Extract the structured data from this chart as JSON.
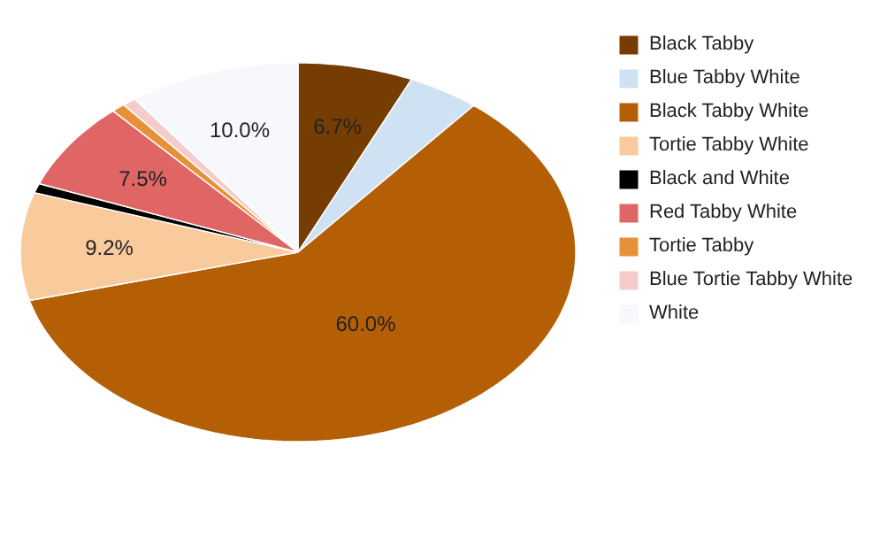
{
  "chart_data": {
    "type": "pie",
    "categories": [
      "Black Tabby",
      "Blue Tabby White",
      "Black Tabby White",
      "Tortie Tabby White",
      "Black and White",
      "Red Tabby White",
      "Tortie Tabby",
      "Blue Tortie Tabby White",
      "White"
    ],
    "values": [
      6.7,
      4.2,
      60.0,
      9.2,
      0.8,
      7.5,
      0.8,
      0.8,
      10.0
    ],
    "colors": [
      "#763d03",
      "#cfe2f3",
      "#b45f06",
      "#f9cb9c",
      "#000000",
      "#e06666",
      "#e69138",
      "#f4cccc",
      "#f6f8fb"
    ],
    "value_labels": [
      "6.7%",
      null,
      "60.0%",
      "9.2%",
      null,
      "7.5%",
      null,
      null,
      "10.0%"
    ],
    "legend": "right"
  }
}
